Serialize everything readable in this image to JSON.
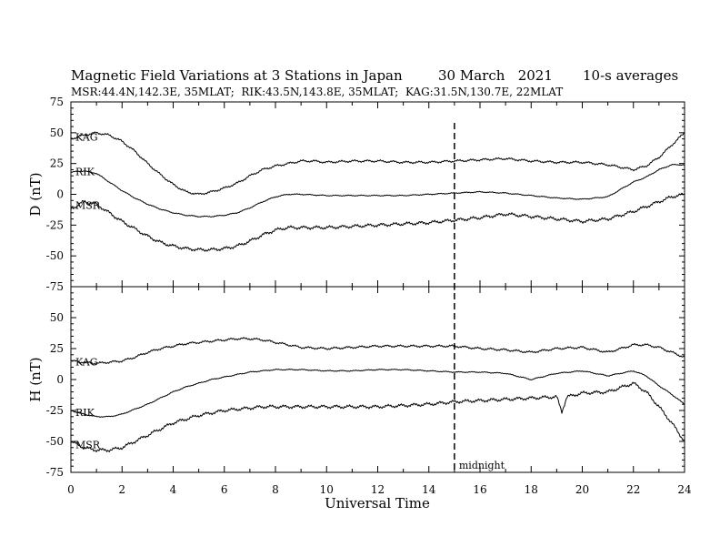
{
  "header": {
    "title": "Magnetic Field Variations at 3 Stations in Japan",
    "date": "30 March   2021",
    "averaging": "10-s averages",
    "stations_line": "MSR:44.4N,142.3E, 35MLAT;  RIK:43.5N,143.8E, 35MLAT;  KAG:31.5N,130.7E, 22MLAT"
  },
  "chart_data": {
    "type": "line",
    "xlabel": "Universal Time",
    "xlim": [
      0,
      24
    ],
    "x_ticks": [
      0,
      2,
      4,
      6,
      8,
      10,
      12,
      14,
      16,
      18,
      20,
      22,
      24
    ],
    "grid": false,
    "annotations": [
      {
        "type": "vertical-dashed-line",
        "x": 15,
        "label": "midnight"
      }
    ],
    "panels": [
      {
        "ylabel": "D (nT)",
        "ylim": [
          -75,
          75
        ],
        "y_ticks": [
          75,
          50,
          25,
          0,
          -25,
          -50,
          -75
        ],
        "series": [
          {
            "name": "KAG",
            "x": [
              0,
              0.5,
              1,
              1.5,
              2,
              2.5,
              3,
              3.5,
              4,
              4.5,
              5,
              5.5,
              6,
              6.5,
              7,
              7.5,
              8,
              8.5,
              9,
              9.5,
              10,
              11,
              12,
              13,
              14,
              15,
              16,
              17,
              18,
              19,
              20,
              21,
              22,
              22.5,
              23,
              23.5,
              24
            ],
            "y": [
              45,
              48,
              50,
              48,
              43,
              35,
              25,
              16,
              8,
              2,
              0,
              2,
              5,
              9,
              15,
              20,
              23,
              25,
              27,
              27,
              26,
              27,
              27,
              26,
              26,
              27,
              28,
              29,
              27,
              26,
              26,
              24,
              20,
              23,
              30,
              40,
              50
            ]
          },
          {
            "name": "RIK",
            "x": [
              0,
              0.5,
              1,
              1.5,
              2,
              2.5,
              3,
              3.5,
              4,
              4.5,
              5,
              5.5,
              6,
              6.5,
              7,
              7.5,
              8,
              8.5,
              9,
              10,
              11,
              12,
              13,
              14,
              15,
              16,
              17,
              18,
              19,
              20,
              21,
              22,
              22.5,
              23,
              23.5,
              24
            ],
            "y": [
              18,
              19,
              17,
              10,
              3,
              -3,
              -8,
              -12,
              -15,
              -17,
              -18,
              -18,
              -17,
              -15,
              -11,
              -6,
              -2,
              0,
              0,
              -1,
              -1,
              -1,
              -1,
              0,
              1,
              2,
              1,
              -1,
              -3,
              -4,
              -2,
              10,
              14,
              20,
              24,
              24
            ]
          },
          {
            "name": "MSR",
            "x": [
              0,
              0.5,
              1,
              1.5,
              2,
              2.5,
              3,
              3.5,
              4,
              4.5,
              5,
              5.5,
              6,
              6.5,
              7,
              7.5,
              8,
              8.5,
              9,
              10,
              11,
              12,
              13,
              14,
              15,
              16,
              17,
              18,
              19,
              20,
              21,
              22,
              22.5,
              23,
              23.5,
              24
            ],
            "y": [
              -12,
              -6,
              -8,
              -15,
              -22,
              -28,
              -34,
              -39,
              -42,
              -44,
              -45,
              -45,
              -44,
              -42,
              -38,
              -33,
              -29,
              -27,
              -27,
              -27,
              -26,
              -25,
              -24,
              -23,
              -21,
              -19,
              -16,
              -18,
              -20,
              -22,
              -20,
              -14,
              -10,
              -6,
              -2,
              0
            ]
          }
        ]
      },
      {
        "ylabel": "H (nT)",
        "ylim": [
          -75,
          75
        ],
        "y_ticks": [
          75,
          50,
          25,
          0,
          -25,
          -50,
          -75
        ],
        "series": [
          {
            "name": "KAG",
            "x": [
              0,
              0.5,
              1,
              1.5,
              2,
              2.5,
              3,
              3.5,
              4,
              4.5,
              5,
              5.5,
              6,
              6.5,
              7,
              7.5,
              8,
              8.5,
              9,
              10,
              11,
              12,
              13,
              14,
              15,
              16,
              17,
              18,
              19,
              20,
              21,
              22,
              22.5,
              23,
              23.5,
              24
            ],
            "y": [
              15,
              14,
              13,
              14,
              15,
              18,
              22,
              25,
              27,
              29,
              30,
              31,
              32,
              33,
              33,
              32,
              30,
              28,
              26,
              25,
              26,
              27,
              27,
              27,
              27,
              25,
              24,
              22,
              25,
              26,
              22,
              28,
              28,
              26,
              22,
              18
            ]
          },
          {
            "name": "RIK",
            "x": [
              0,
              0.5,
              1,
              1.5,
              2,
              2.5,
              3,
              3.5,
              4,
              4.5,
              5,
              5.5,
              6,
              6.5,
              7,
              7.5,
              8,
              8.5,
              9,
              10,
              11,
              12,
              13,
              14,
              15,
              16,
              17,
              18,
              19,
              20,
              21,
              22,
              22.5,
              23,
              23.5,
              24
            ],
            "y": [
              -25,
              -28,
              -30,
              -30,
              -28,
              -24,
              -20,
              -15,
              -10,
              -6,
              -3,
              0,
              2,
              4,
              6,
              7,
              8,
              8,
              8,
              7,
              7,
              8,
              8,
              7,
              6,
              6,
              5,
              0,
              5,
              7,
              3,
              7,
              3,
              -5,
              -12,
              -20
            ]
          },
          {
            "name": "MSR",
            "x": [
              0,
              0.5,
              1,
              1.5,
              2,
              2.5,
              3,
              3.5,
              4,
              4.5,
              5,
              5.5,
              6,
              6.5,
              7,
              7.5,
              8,
              8.5,
              9,
              10,
              11,
              12,
              13,
              14,
              15,
              16,
              17,
              18,
              19,
              19.2,
              19.4,
              20,
              21,
              22,
              22.5,
              23,
              23.5,
              24
            ],
            "y": [
              -50,
              -55,
              -57,
              -57,
              -55,
              -50,
              -45,
              -40,
              -35,
              -32,
              -29,
              -27,
              -25,
              -24,
              -23,
              -22,
              -22,
              -22,
              -22,
              -22,
              -22,
              -22,
              -21,
              -20,
              -18,
              -17,
              -16,
              -15,
              -14,
              -26,
              -14,
              -11,
              -10,
              -3,
              -10,
              -22,
              -35,
              -50
            ]
          }
        ]
      }
    ]
  }
}
